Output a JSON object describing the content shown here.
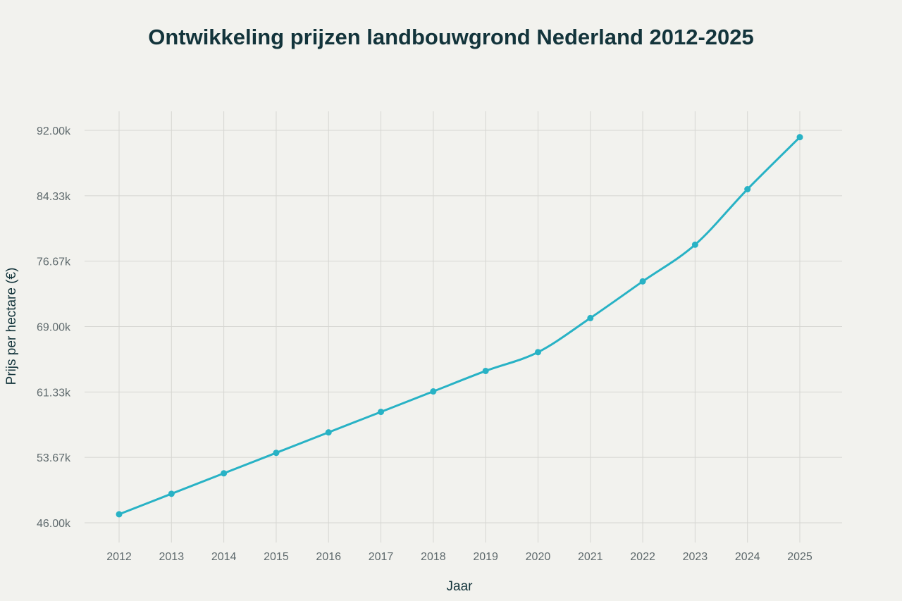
{
  "colors": {
    "background": "#f2f2ee",
    "line": "#28b2c5",
    "grid": "#d6d6d2",
    "title": "#13343b",
    "tick": "#5f6a6d"
  },
  "chart_data": {
    "type": "line",
    "title": "Ontwikkeling prijzen landbouwgrond Nederland 2012-2025",
    "xlabel": "Jaar",
    "ylabel": "Prijs per hectare (€)",
    "x": [
      2012,
      2013,
      2014,
      2015,
      2016,
      2017,
      2018,
      2019,
      2020,
      2021,
      2022,
      2023,
      2024,
      2025
    ],
    "x_tick_labels": [
      "2012",
      "2013",
      "2014",
      "2015",
      "2016",
      "2017",
      "2018",
      "2019",
      "2020",
      "2021",
      "2022",
      "2023",
      "2024",
      "2025"
    ],
    "series": [
      {
        "values": [
          47000,
          49400,
          51800,
          54200,
          56600,
          59000,
          61400,
          63800,
          66000,
          70000,
          74300,
          78600,
          85100,
          91200
        ]
      }
    ],
    "ylim": [
      46000,
      92000
    ],
    "y_ticks": [
      46000,
      53666.67,
      61333.33,
      69000,
      76666.67,
      84333.33,
      92000
    ],
    "y_tick_labels": [
      "46.00k",
      "53.67k",
      "61.33k",
      "69.00k",
      "76.67k",
      "84.33k",
      "92.00k"
    ],
    "grid": true,
    "legend": "none"
  }
}
